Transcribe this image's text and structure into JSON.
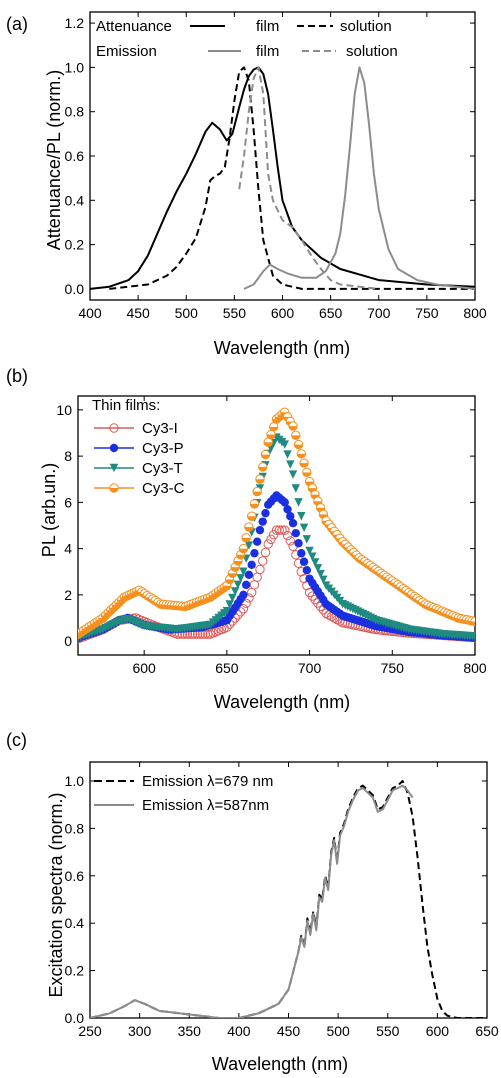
{
  "colors": {
    "black": "#000000",
    "gray": "#8c8c8c",
    "cy3i": "#e05a5a",
    "cy3p": "#1a2fe0",
    "cy3t": "#1f8a80",
    "cy3c": "#f5901e"
  },
  "chart_data": [
    {
      "panel": "(a)",
      "type": "line",
      "xlabel": "Wavelength (nm)",
      "ylabel": "Attenuance/PL (norm.)",
      "xlim": [
        400,
        800
      ],
      "ylim": [
        -0.05,
        1.25
      ],
      "xticks": [
        400,
        450,
        500,
        550,
        600,
        650,
        700,
        750,
        800
      ],
      "yticks": [
        0.0,
        0.2,
        0.4,
        0.6,
        0.8,
        1.0,
        1.2
      ],
      "xtick_labels": [
        "400",
        "450",
        "500",
        "550",
        "600",
        "650",
        "700",
        "750",
        "800"
      ],
      "ytick_labels": [
        "0.0",
        "0.2",
        "0.4",
        "0.6",
        "0.8",
        "1.0",
        "1.2"
      ],
      "legend": {
        "row1_label": "Attenuance",
        "row2_label": "Emission",
        "film": "film",
        "solution": "solution"
      },
      "series": [
        {
          "group": "Attenuance",
          "name": "film",
          "color": "#000000",
          "dash": "solid",
          "x": [
            400,
            420,
            440,
            450,
            460,
            470,
            480,
            490,
            500,
            510,
            520,
            527,
            535,
            542,
            548,
            555,
            560,
            565,
            570,
            575,
            580,
            585,
            590,
            595,
            600,
            610,
            620,
            640,
            660,
            700,
            750,
            800
          ],
          "y": [
            0.0,
            0.01,
            0.04,
            0.08,
            0.15,
            0.25,
            0.35,
            0.44,
            0.52,
            0.61,
            0.71,
            0.75,
            0.72,
            0.67,
            0.7,
            0.82,
            0.9,
            0.96,
            0.99,
            1.0,
            0.97,
            0.88,
            0.72,
            0.55,
            0.4,
            0.28,
            0.22,
            0.14,
            0.09,
            0.04,
            0.02,
            0.01
          ]
        },
        {
          "group": "Attenuance",
          "name": "solution",
          "color": "#000000",
          "dash": "dashed",
          "x": [
            420,
            440,
            460,
            480,
            490,
            500,
            510,
            515,
            520,
            525,
            530,
            535,
            540,
            545,
            550,
            555,
            560,
            565,
            570,
            575,
            580,
            590,
            600,
            620,
            650,
            700,
            800
          ],
          "y": [
            0.0,
            0.01,
            0.02,
            0.06,
            0.1,
            0.16,
            0.23,
            0.3,
            0.37,
            0.49,
            0.51,
            0.52,
            0.55,
            0.68,
            0.85,
            0.98,
            1.0,
            0.94,
            0.72,
            0.45,
            0.22,
            0.06,
            0.02,
            0.0,
            0.0,
            0.0,
            0.0
          ]
        },
        {
          "group": "Emission",
          "name": "film",
          "color": "#8c8c8c",
          "dash": "solid",
          "x": [
            560,
            570,
            580,
            587,
            595,
            605,
            620,
            635,
            645,
            655,
            660,
            665,
            670,
            675,
            680,
            685,
            690,
            695,
            700,
            710,
            720,
            740,
            760,
            780,
            800
          ],
          "y": [
            0.0,
            0.02,
            0.08,
            0.11,
            0.09,
            0.07,
            0.05,
            0.05,
            0.08,
            0.16,
            0.25,
            0.42,
            0.64,
            0.88,
            1.0,
            0.93,
            0.74,
            0.52,
            0.36,
            0.18,
            0.09,
            0.04,
            0.02,
            0.01,
            0.0
          ]
        },
        {
          "group": "Emission",
          "name": "solution",
          "color": "#8c8c8c",
          "dash": "dashed",
          "x": [
            555,
            560,
            565,
            570,
            575,
            580,
            585,
            590,
            600,
            610,
            620,
            630,
            640,
            650,
            660,
            680,
            700
          ],
          "y": [
            0.45,
            0.6,
            0.8,
            0.95,
            1.0,
            0.88,
            0.52,
            0.4,
            0.31,
            0.28,
            0.22,
            0.15,
            0.09,
            0.04,
            0.02,
            0.01,
            0.0
          ]
        }
      ]
    },
    {
      "panel": "(b)",
      "type": "scatter",
      "xlabel": "Wavelength (nm)",
      "ylabel": "PL (arb.un.)",
      "xlim": [
        560,
        800
      ],
      "ylim": [
        -0.6,
        10.6
      ],
      "xticks": [
        600,
        650,
        700,
        750,
        800
      ],
      "yticks": [
        0,
        2,
        4,
        6,
        8,
        10
      ],
      "xtick_labels": [
        "600",
        "650",
        "700",
        "750",
        "800"
      ],
      "ytick_labels": [
        "0",
        "2",
        "4",
        "6",
        "8",
        "10"
      ],
      "legend_title": "Thin films:",
      "series": [
        {
          "name": "Cy3-I",
          "color": "#e05a5a",
          "marker": "open-circle",
          "x": [
            560,
            575,
            585,
            595,
            605,
            620,
            640,
            650,
            660,
            665,
            670,
            675,
            680,
            685,
            690,
            695,
            700,
            710,
            720,
            740,
            760,
            780,
            800
          ],
          "y": [
            0.1,
            0.5,
            0.9,
            1.0,
            0.7,
            0.3,
            0.3,
            0.6,
            1.4,
            2.1,
            3.1,
            4.2,
            4.8,
            4.8,
            4.1,
            3.0,
            2.1,
            1.2,
            0.8,
            0.5,
            0.35,
            0.25,
            0.15
          ]
        },
        {
          "name": "Cy3-P",
          "color": "#1a2fe0",
          "marker": "filled-circle",
          "x": [
            560,
            575,
            585,
            590,
            600,
            615,
            635,
            650,
            660,
            665,
            670,
            675,
            680,
            685,
            690,
            695,
            700,
            710,
            720,
            740,
            760,
            780,
            800
          ],
          "y": [
            0.15,
            0.5,
            0.9,
            1.0,
            0.7,
            0.5,
            0.6,
            0.9,
            2.0,
            3.3,
            4.8,
            5.9,
            6.3,
            6.0,
            5.1,
            3.8,
            2.7,
            1.6,
            1.1,
            0.65,
            0.4,
            0.25,
            0.15
          ]
        },
        {
          "name": "Cy3-T",
          "color": "#1f8a80",
          "marker": "triangle-down",
          "x": [
            560,
            575,
            585,
            590,
            600,
            620,
            640,
            650,
            660,
            665,
            670,
            675,
            680,
            685,
            690,
            695,
            700,
            710,
            720,
            740,
            760,
            780,
            800
          ],
          "y": [
            0.15,
            0.5,
            0.85,
            0.95,
            0.65,
            0.5,
            0.7,
            1.3,
            3.0,
            4.7,
            6.6,
            8.1,
            8.8,
            8.5,
            7.2,
            5.4,
            3.9,
            2.4,
            1.6,
            0.9,
            0.5,
            0.3,
            0.2
          ]
        },
        {
          "name": "Cy3-C",
          "color": "#f5901e",
          "marker": "half-circle",
          "x": [
            560,
            575,
            588,
            597,
            610,
            625,
            640,
            650,
            660,
            665,
            670,
            675,
            680,
            685,
            690,
            695,
            700,
            710,
            720,
            730,
            740,
            750,
            760,
            770,
            780,
            790,
            800
          ],
          "y": [
            0.3,
            1.0,
            1.9,
            2.2,
            1.6,
            1.5,
            1.9,
            2.4,
            4.0,
            5.4,
            7.0,
            8.6,
            9.6,
            9.9,
            9.3,
            8.1,
            6.9,
            5.2,
            4.3,
            3.6,
            3.1,
            2.6,
            2.1,
            1.6,
            1.3,
            1.0,
            0.85
          ]
        }
      ]
    },
    {
      "panel": "(c)",
      "type": "line",
      "xlabel": "Wavelength (nm)",
      "ylabel": "Excitation spectra (norm.)",
      "xlim": [
        250,
        650
      ],
      "ylim": [
        0,
        1.08
      ],
      "xticks": [
        250,
        300,
        350,
        400,
        450,
        500,
        550,
        600,
        650
      ],
      "yticks": [
        0.0,
        0.2,
        0.4,
        0.6,
        0.8,
        1.0
      ],
      "xtick_labels": [
        "250",
        "300",
        "350",
        "400",
        "450",
        "500",
        "550",
        "600",
        "650"
      ],
      "ytick_labels": [
        "0.0",
        "0.2",
        "0.4",
        "0.6",
        "0.8",
        "1.0"
      ],
      "series": [
        {
          "name": "Emission λ=679 nm",
          "color": "#000000",
          "dash": "dashed",
          "x": [
            250,
            270,
            285,
            295,
            305,
            320,
            340,
            360,
            380,
            400,
            420,
            440,
            450,
            455,
            460,
            463,
            466,
            469,
            472,
            475,
            478,
            481,
            484,
            487,
            490,
            493,
            496,
            499,
            502,
            506,
            510,
            515,
            520,
            525,
            530,
            535,
            540,
            545,
            550,
            555,
            560,
            565,
            570,
            575,
            580,
            585,
            590,
            595,
            600,
            605,
            610,
            620,
            640,
            650
          ],
          "y": [
            0.0,
            0.02,
            0.05,
            0.075,
            0.06,
            0.03,
            0.02,
            0.01,
            0.0,
            0.0,
            0.02,
            0.06,
            0.12,
            0.2,
            0.28,
            0.35,
            0.3,
            0.42,
            0.36,
            0.45,
            0.38,
            0.52,
            0.5,
            0.6,
            0.55,
            0.7,
            0.76,
            0.66,
            0.78,
            0.82,
            0.88,
            0.93,
            0.97,
            0.98,
            0.96,
            0.94,
            0.88,
            0.89,
            0.93,
            0.97,
            0.98,
            1.0,
            0.95,
            0.85,
            0.68,
            0.48,
            0.3,
            0.18,
            0.08,
            0.03,
            0.01,
            0.0,
            0.0,
            0.0
          ]
        },
        {
          "name": "Emission λ=587nm",
          "color": "#8c8c8c",
          "dash": "solid",
          "x": [
            250,
            270,
            285,
            295,
            305,
            320,
            340,
            360,
            380,
            400,
            420,
            440,
            450,
            455,
            460,
            463,
            466,
            469,
            472,
            475,
            478,
            481,
            484,
            487,
            490,
            493,
            496,
            499,
            502,
            506,
            510,
            515,
            520,
            525,
            530,
            535,
            540,
            545,
            550,
            555,
            560,
            565,
            570,
            575
          ],
          "y": [
            0.0,
            0.02,
            0.05,
            0.075,
            0.06,
            0.03,
            0.02,
            0.01,
            0.0,
            0.0,
            0.02,
            0.06,
            0.12,
            0.2,
            0.28,
            0.34,
            0.3,
            0.41,
            0.35,
            0.44,
            0.37,
            0.51,
            0.49,
            0.59,
            0.54,
            0.69,
            0.75,
            0.65,
            0.77,
            0.81,
            0.87,
            0.92,
            0.96,
            0.97,
            0.95,
            0.93,
            0.87,
            0.88,
            0.92,
            0.96,
            0.97,
            0.98,
            0.96,
            0.93
          ]
        }
      ]
    }
  ]
}
